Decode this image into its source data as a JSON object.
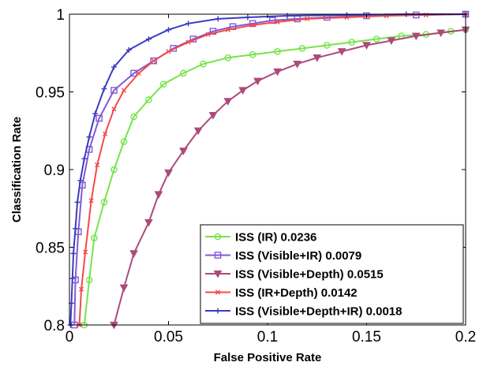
{
  "chart_data": {
    "type": "line",
    "title": "",
    "xlabel": "False Positive Rate",
    "ylabel": "Classification Rate",
    "xlim": [
      0,
      0.2
    ],
    "ylim": [
      0.8,
      1
    ],
    "xticks": [
      0,
      0.05,
      0.1,
      0.15,
      0.2
    ],
    "xtick_labels": [
      "0",
      "0.05",
      "0.1",
      "0.15",
      "0.2"
    ],
    "yticks": [
      0.8,
      0.85,
      0.9,
      0.95,
      1
    ],
    "ytick_labels": [
      "0.8",
      "0.85",
      "0.9",
      "0.95",
      "1"
    ],
    "grid": false,
    "legend_position": "bottom-right",
    "series": [
      {
        "name": "ISS (IR) 0.0236",
        "color": "#77e34d",
        "marker": "circle",
        "points": [
          [
            0.0075,
            0.8
          ],
          [
            0.01,
            0.829
          ],
          [
            0.0125,
            0.856
          ],
          [
            0.0175,
            0.879
          ],
          [
            0.0225,
            0.9
          ],
          [
            0.0275,
            0.918
          ],
          [
            0.0325,
            0.934
          ],
          [
            0.04,
            0.945
          ],
          [
            0.0475,
            0.955
          ],
          [
            0.0575,
            0.962
          ],
          [
            0.0675,
            0.968
          ],
          [
            0.08,
            0.972
          ],
          [
            0.0925,
            0.974
          ],
          [
            0.105,
            0.976
          ],
          [
            0.1175,
            0.978
          ],
          [
            0.13,
            0.98
          ],
          [
            0.1425,
            0.982
          ],
          [
            0.155,
            0.984
          ],
          [
            0.1675,
            0.986
          ],
          [
            0.18,
            0.987
          ],
          [
            0.1925,
            0.989
          ],
          [
            0.2,
            0.99
          ]
        ]
      },
      {
        "name": "ISS (Visible+IR) 0.0079",
        "color": "#8458d4",
        "marker": "square",
        "points": [
          [
            0.0025,
            0.8
          ],
          [
            0.003,
            0.829
          ],
          [
            0.0045,
            0.86
          ],
          [
            0.0065,
            0.89
          ],
          [
            0.01,
            0.913
          ],
          [
            0.015,
            0.933
          ],
          [
            0.0225,
            0.951
          ],
          [
            0.0325,
            0.962
          ],
          [
            0.0425,
            0.97
          ],
          [
            0.0525,
            0.978
          ],
          [
            0.0625,
            0.984
          ],
          [
            0.0725,
            0.989
          ],
          [
            0.0825,
            0.992
          ],
          [
            0.0925,
            0.994
          ],
          [
            0.1025,
            0.996
          ],
          [
            0.115,
            0.997
          ],
          [
            0.13,
            0.998
          ],
          [
            0.15,
            0.999
          ],
          [
            0.175,
            0.9995
          ],
          [
            0.2,
            1.0
          ]
        ]
      },
      {
        "name": "ISS (Visible+Depth) 0.0515",
        "color": "#ac4a7b",
        "marker": "triangle-down",
        "points": [
          [
            0.0225,
            0.8
          ],
          [
            0.0275,
            0.824
          ],
          [
            0.0325,
            0.846
          ],
          [
            0.04,
            0.866
          ],
          [
            0.045,
            0.884
          ],
          [
            0.05,
            0.898
          ],
          [
            0.0575,
            0.912
          ],
          [
            0.065,
            0.925
          ],
          [
            0.0725,
            0.935
          ],
          [
            0.08,
            0.944
          ],
          [
            0.0875,
            0.951
          ],
          [
            0.095,
            0.957
          ],
          [
            0.105,
            0.963
          ],
          [
            0.115,
            0.968
          ],
          [
            0.125,
            0.972
          ],
          [
            0.1375,
            0.976
          ],
          [
            0.15,
            0.98
          ],
          [
            0.1625,
            0.983
          ],
          [
            0.175,
            0.986
          ],
          [
            0.1875,
            0.988
          ],
          [
            0.2,
            0.99
          ]
        ]
      },
      {
        "name": "ISS (IR+Depth) 0.0142",
        "color": "#f24a4a",
        "marker": "x",
        "points": [
          [
            0.005,
            0.8
          ],
          [
            0.006,
            0.823
          ],
          [
            0.008,
            0.847
          ],
          [
            0.011,
            0.88
          ],
          [
            0.014,
            0.903
          ],
          [
            0.018,
            0.923
          ],
          [
            0.0225,
            0.939
          ],
          [
            0.0275,
            0.951
          ],
          [
            0.035,
            0.962
          ],
          [
            0.0425,
            0.97
          ],
          [
            0.05,
            0.976
          ],
          [
            0.06,
            0.982
          ],
          [
            0.07,
            0.987
          ],
          [
            0.08,
            0.99
          ],
          [
            0.0925,
            0.993
          ],
          [
            0.105,
            0.995
          ],
          [
            0.12,
            0.997
          ],
          [
            0.14,
            0.998
          ],
          [
            0.16,
            0.999
          ],
          [
            0.18,
            0.9995
          ],
          [
            0.2,
            1.0
          ]
        ]
      },
      {
        "name": "ISS (Visible+Depth+IR) 0.0018",
        "color": "#3b3bc0",
        "marker": "plus",
        "points": [
          [
            0.0005,
            0.8
          ],
          [
            0.001,
            0.814
          ],
          [
            0.0015,
            0.83
          ],
          [
            0.002,
            0.846
          ],
          [
            0.003,
            0.862
          ],
          [
            0.004,
            0.879
          ],
          [
            0.0055,
            0.893
          ],
          [
            0.0075,
            0.907
          ],
          [
            0.01,
            0.921
          ],
          [
            0.013,
            0.936
          ],
          [
            0.0175,
            0.952
          ],
          [
            0.0225,
            0.966
          ],
          [
            0.03,
            0.977
          ],
          [
            0.04,
            0.984
          ],
          [
            0.05,
            0.99
          ],
          [
            0.06,
            0.994
          ],
          [
            0.075,
            0.997
          ],
          [
            0.09,
            0.998
          ],
          [
            0.11,
            0.999
          ],
          [
            0.14,
            0.9995
          ],
          [
            0.17,
            1.0
          ],
          [
            0.2,
            1.0
          ]
        ]
      }
    ]
  }
}
